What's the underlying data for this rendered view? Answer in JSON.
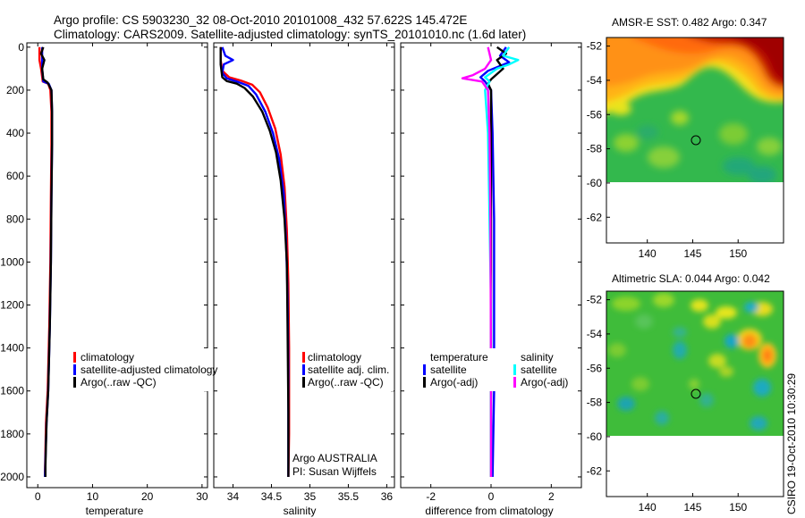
{
  "titles": {
    "line1": "Argo profile: CS 5903230_32 08-Oct-2010 20101008_432 57.622S 145.472E",
    "line2": "Climatology: CARS2009. Satellite-adjusted climatology: synTS_20101010.nc (1.6d later)"
  },
  "side_credit": "CSIRO 19-Oct-2010 10:30:29",
  "colors": {
    "red": "#ff0000",
    "blue": "#0000ff",
    "black": "#000000",
    "cyan": "#00ffff",
    "magenta": "#ff00ff"
  },
  "chart_data": [
    {
      "id": "temperature",
      "type": "line",
      "xlabel": "temperature",
      "xlim": [
        -2,
        31
      ],
      "ylim": [
        2050,
        -20
      ],
      "xticks": [
        0,
        10,
        20,
        30
      ],
      "yticks": [
        0,
        200,
        400,
        600,
        800,
        1000,
        1200,
        1400,
        1600,
        1800,
        2000
      ],
      "legend": [
        "climatology",
        "satellite-adjusted climatology",
        "Argo(..raw -QC)"
      ],
      "series": [
        {
          "name": "climatology",
          "color": "red",
          "points": [
            [
              0.3,
              0
            ],
            [
              0.3,
              60
            ],
            [
              0.6,
              100
            ],
            [
              0.9,
              160
            ],
            [
              1.9,
              170
            ],
            [
              2.3,
              200
            ],
            [
              2.5,
              300
            ],
            [
              2.5,
              450
            ],
            [
              2.4,
              700
            ],
            [
              2.3,
              1000
            ],
            [
              2.1,
              1300
            ],
            [
              1.8,
              1600
            ],
            [
              1.5,
              1750
            ],
            [
              1.3,
              2000
            ]
          ]
        },
        {
          "name": "satellite-adjusted climatology",
          "color": "blue",
          "points": [
            [
              0.8,
              0
            ],
            [
              0.8,
              100
            ],
            [
              1.0,
              160
            ],
            [
              2.0,
              170
            ],
            [
              2.5,
              200
            ],
            [
              2.6,
              300
            ],
            [
              2.6,
              450
            ],
            [
              2.5,
              700
            ],
            [
              2.4,
              1000
            ],
            [
              2.2,
              1300
            ],
            [
              1.9,
              1600
            ],
            [
              1.6,
              1750
            ],
            [
              1.3,
              2000
            ]
          ]
        },
        {
          "name": "Argo(..raw -QC)",
          "color": "black",
          "points": [
            [
              1.0,
              0
            ],
            [
              0.6,
              30
            ],
            [
              1.2,
              60
            ],
            [
              0.8,
              100
            ],
            [
              1.0,
              150
            ],
            [
              1.8,
              165
            ],
            [
              2.5,
              200
            ],
            [
              2.6,
              300
            ],
            [
              2.6,
              450
            ],
            [
              2.5,
              700
            ],
            [
              2.4,
              1000
            ],
            [
              2.2,
              1300
            ],
            [
              1.9,
              1600
            ],
            [
              1.6,
              1750
            ],
            [
              1.4,
              1950
            ],
            [
              1.4,
              2000
            ]
          ]
        }
      ]
    },
    {
      "id": "salinity",
      "type": "line",
      "xlabel": "salinity",
      "xlim": [
        33.75,
        36.1
      ],
      "ylim": [
        2050,
        -20
      ],
      "xticks": [
        34,
        34.5,
        35,
        35.5,
        36
      ],
      "yticks": [
        0,
        200,
        400,
        600,
        800,
        1000,
        1200,
        1400,
        1600,
        1800,
        2000
      ],
      "legend": [
        "climatology",
        "satellite adj. clim.",
        "Argo(..raw -QC)"
      ],
      "annotations": [
        "Argo AUSTRALIA",
        "PI: Susan Wijffels"
      ],
      "series": [
        {
          "name": "climatology",
          "color": "red",
          "points": [
            [
              33.84,
              0
            ],
            [
              33.84,
              60
            ],
            [
              33.86,
              110
            ],
            [
              33.95,
              140
            ],
            [
              34.1,
              155
            ],
            [
              34.25,
              175
            ],
            [
              34.35,
              210
            ],
            [
              34.45,
              280
            ],
            [
              34.55,
              380
            ],
            [
              34.62,
              500
            ],
            [
              34.67,
              650
            ],
            [
              34.7,
              850
            ],
            [
              34.72,
              1100
            ],
            [
              34.73,
              1400
            ],
            [
              34.73,
              1800
            ],
            [
              34.72,
              2000
            ]
          ]
        },
        {
          "name": "satellite adj. clim.",
          "color": "blue",
          "points": [
            [
              33.86,
              0
            ],
            [
              33.9,
              40
            ],
            [
              34.0,
              60
            ],
            [
              33.88,
              80
            ],
            [
              33.86,
              120
            ],
            [
              33.92,
              145
            ],
            [
              34.05,
              160
            ],
            [
              34.2,
              180
            ],
            [
              34.3,
              220
            ],
            [
              34.42,
              300
            ],
            [
              34.52,
              400
            ],
            [
              34.6,
              520
            ],
            [
              34.66,
              680
            ],
            [
              34.69,
              900
            ],
            [
              34.71,
              1150
            ],
            [
              34.72,
              1500
            ],
            [
              34.72,
              2000
            ]
          ]
        },
        {
          "name": "Argo(..raw -QC)",
          "color": "black",
          "points": [
            [
              33.84,
              0
            ],
            [
              33.84,
              80
            ],
            [
              33.86,
              140
            ],
            [
              33.92,
              158
            ],
            [
              34.05,
              170
            ],
            [
              34.15,
              190
            ],
            [
              34.26,
              230
            ],
            [
              34.38,
              300
            ],
            [
              34.48,
              390
            ],
            [
              34.56,
              490
            ],
            [
              34.62,
              620
            ],
            [
              34.67,
              800
            ],
            [
              34.7,
              1000
            ],
            [
              34.71,
              1300
            ],
            [
              34.72,
              1700
            ],
            [
              34.72,
              2000
            ]
          ]
        }
      ]
    },
    {
      "id": "difference",
      "type": "line",
      "xlabel": "difference from climatology",
      "xlim": [
        -3,
        3
      ],
      "ylim": [
        2050,
        -20
      ],
      "xticks": [
        -2,
        0,
        2
      ],
      "yticks": [
        0,
        200,
        400,
        600,
        800,
        1000,
        1200,
        1400,
        1600,
        1800,
        2000
      ],
      "legend_headers": [
        "temperature",
        "salinity"
      ],
      "legend": [
        "satellite",
        "Argo(-adj)",
        "satellite",
        "Argo(-adj)"
      ],
      "series": [
        {
          "name": "temperature satellite",
          "color": "blue",
          "points": [
            [
              0.5,
              0
            ],
            [
              0.3,
              40
            ],
            [
              0.6,
              70
            ],
            [
              -0.1,
              110
            ],
            [
              -0.35,
              140
            ],
            [
              -0.2,
              160
            ],
            [
              0.0,
              200
            ],
            [
              0.05,
              400
            ],
            [
              0.1,
              800
            ],
            [
              0.1,
              1200
            ],
            [
              0.1,
              1600
            ],
            [
              0.05,
              2000
            ]
          ]
        },
        {
          "name": "temperature Argo(-adj)",
          "color": "black",
          "points": [
            [
              0.2,
              0
            ],
            [
              0.5,
              30
            ],
            [
              0.2,
              60
            ],
            [
              0.4,
              100
            ],
            [
              0.0,
              150
            ],
            [
              -0.1,
              170
            ],
            [
              0.0,
              200
            ],
            [
              0.0,
              400
            ],
            [
              0.0,
              800
            ],
            [
              0.0,
              1200
            ],
            [
              0.0,
              1600
            ],
            [
              0.0,
              2000
            ]
          ]
        },
        {
          "name": "salinity satellite",
          "color": "cyan",
          "points": [
            [
              0.6,
              0
            ],
            [
              0.4,
              40
            ],
            [
              0.9,
              60
            ],
            [
              0.6,
              80
            ],
            [
              0.2,
              100
            ],
            [
              -0.2,
              140
            ],
            [
              -0.05,
              160
            ],
            [
              -0.2,
              200
            ],
            [
              -0.1,
              400
            ],
            [
              -0.05,
              800
            ],
            [
              0.0,
              1200
            ],
            [
              0.0,
              2000
            ]
          ]
        },
        {
          "name": "salinity Argo(-adj)",
          "color": "magenta",
          "points": [
            [
              -0.1,
              0
            ],
            [
              0.0,
              60
            ],
            [
              -0.2,
              100
            ],
            [
              -0.6,
              130
            ],
            [
              -0.95,
              145
            ],
            [
              -0.3,
              160
            ],
            [
              -0.1,
              200
            ],
            [
              -0.05,
              400
            ],
            [
              -0.02,
              800
            ],
            [
              -0.01,
              1200
            ],
            [
              0.0,
              1600
            ],
            [
              0.0,
              2000
            ]
          ]
        }
      ]
    },
    {
      "id": "amsre-sst",
      "type": "heatmap",
      "title": "AMSR-E SST: 0.482 Argo: 0.347",
      "xticks": [
        140,
        145,
        150
      ],
      "yticks": [
        -52,
        -54,
        -56,
        -58,
        -60,
        -62
      ],
      "xlim": [
        135.5,
        155
      ],
      "ylim": [
        -63.5,
        -51.5
      ],
      "data_coverage_lat_min": -60,
      "marker": {
        "lon": 145.47,
        "lat": -57.62
      },
      "colormap": "jet"
    },
    {
      "id": "altimetric-sla",
      "type": "heatmap",
      "title": "Altimetric SLA: 0.044 Argo: 0.042",
      "xticks": [
        140,
        145,
        150
      ],
      "yticks": [
        -52,
        -54,
        -56,
        -58,
        -60,
        -62
      ],
      "xlim": [
        135.5,
        155
      ],
      "ylim": [
        -63.5,
        -51.5
      ],
      "data_coverage_lat_min": -60,
      "marker": {
        "lon": 145.47,
        "lat": -57.62
      },
      "colormap": "jet"
    }
  ]
}
